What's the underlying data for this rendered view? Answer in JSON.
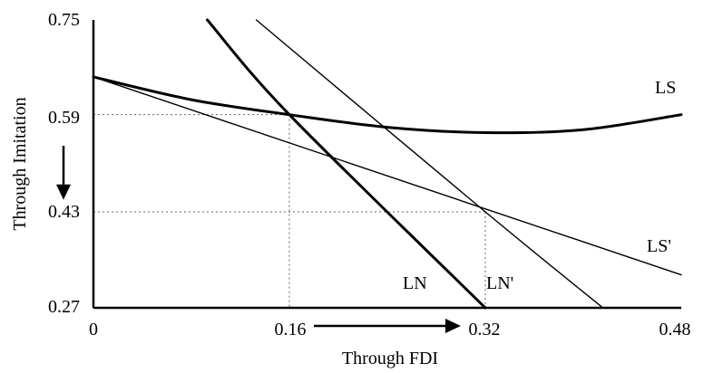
{
  "chart_data": {
    "type": "line",
    "xlabel": "Through FDI",
    "ylabel": "Through Imitation",
    "xlim": [
      0,
      0.48
    ],
    "ylim": [
      0.27,
      0.75
    ],
    "x_ticks": [
      "0",
      "0.16",
      "0.32",
      "0.48"
    ],
    "y_ticks": [
      "0.27",
      "0.43",
      "0.59",
      "0.75"
    ],
    "series": [
      {
        "name": "LS",
        "style": "thick",
        "points": [
          [
            0,
            0.655
          ],
          [
            0.08,
            0.617
          ],
          [
            0.16,
            0.592
          ],
          [
            0.24,
            0.571
          ],
          [
            0.32,
            0.562
          ],
          [
            0.4,
            0.567
          ],
          [
            0.48,
            0.592
          ]
        ]
      },
      {
        "name": "LS'",
        "style": "thin",
        "points": [
          [
            0,
            0.655
          ],
          [
            0.48,
            0.325
          ]
        ]
      },
      {
        "name": "LN",
        "style": "thick",
        "points": [
          [
            0.093,
            0.75
          ],
          [
            0.16,
            0.592
          ],
          [
            0.32,
            0.27
          ]
        ]
      },
      {
        "name": "LN'",
        "style": "thin",
        "points": [
          [
            0.133,
            0.75
          ],
          [
            0.32,
            0.43
          ],
          [
            0.416,
            0.27
          ]
        ]
      }
    ],
    "reference_lines": [
      {
        "x": 0.16,
        "y": 0.592
      },
      {
        "x": 0.32,
        "y": 0.43
      }
    ],
    "arrows": [
      {
        "from": [
          0.18,
          0.23
        ],
        "to": [
          0.3,
          0.23
        ],
        "axis": "x"
      },
      {
        "from": [
          -0.025,
          0.54
        ],
        "to": [
          -0.025,
          0.45
        ],
        "axis": "y"
      }
    ],
    "grid": false,
    "legend": "none"
  }
}
